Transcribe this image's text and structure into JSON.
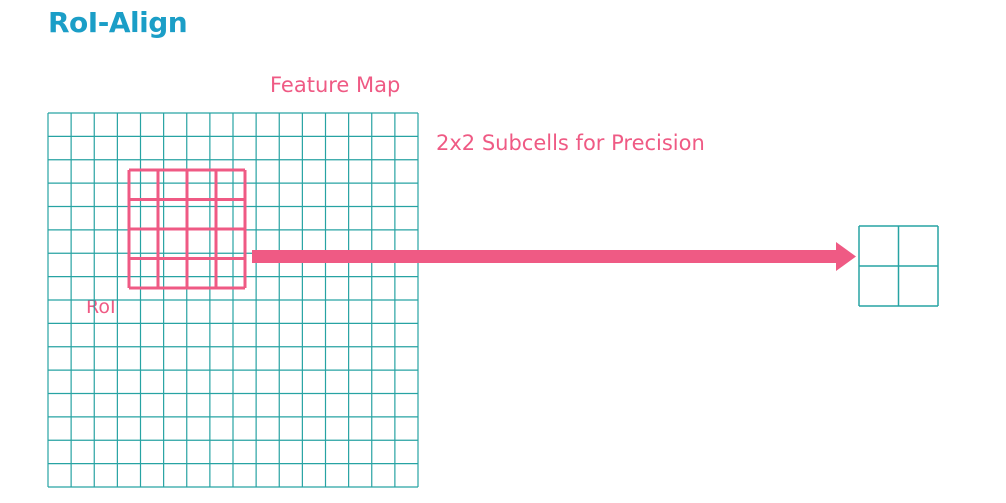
{
  "title": "RoI-Align",
  "labels": {
    "feature_map": "Feature Map",
    "subcells": "2x2 Subcells for Precision",
    "roi": "RoI"
  },
  "grid": {
    "rows": 16,
    "cols": 16
  },
  "roi": {
    "rows": 4,
    "cols": 4
  },
  "output": {
    "rows": 2,
    "cols": 2
  },
  "colors": {
    "title": "#1b9ec7",
    "grid": "#27a3a3",
    "accent": "#ef5a84",
    "background": "#ffffff"
  }
}
